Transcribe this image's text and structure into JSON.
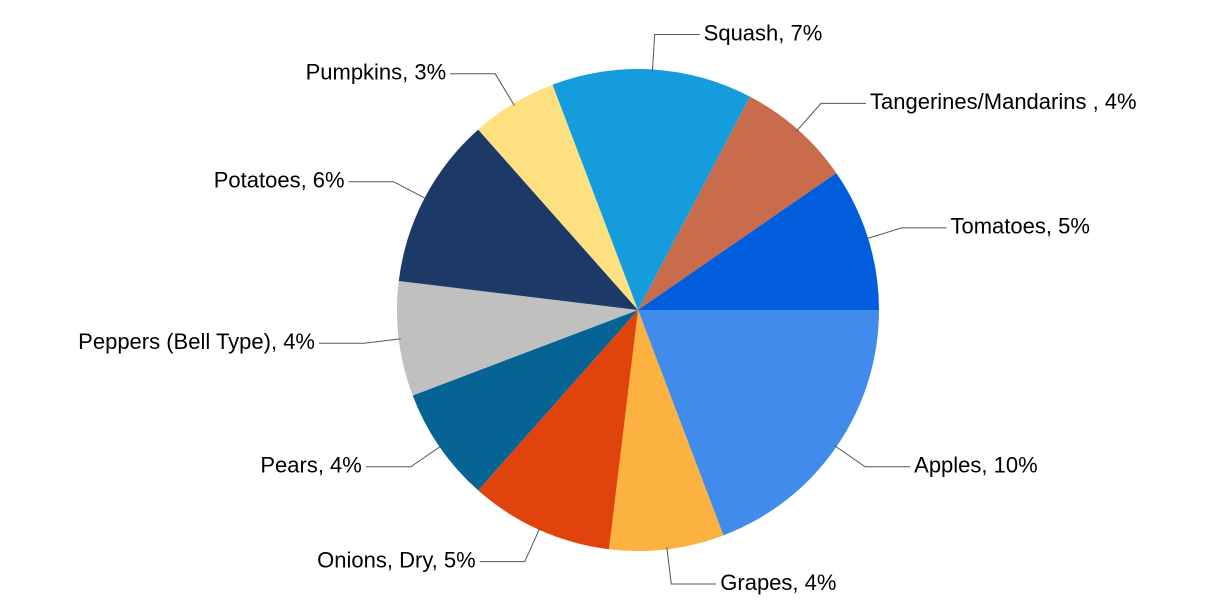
{
  "chart_data": {
    "type": "pie",
    "values": [
      10,
      4,
      5,
      4,
      4,
      6,
      3,
      7,
      4,
      5
    ],
    "value_labels": [
      "Apples, 10%",
      "Grapes, 4%",
      "Onions, Dry, 5%",
      "Pears, 4%",
      "Peppers (Bell Type), 4%",
      "Potatoes, 6%",
      "Pumpkins, 3%",
      "Squash, 7%",
      "Tangerines/Mandarins , 4%",
      "Tomatoes, 5%"
    ],
    "colors": [
      "#418bec",
      "#fbb240",
      "#e0440c",
      "#066494",
      "#c0c0c0",
      "#1d3967",
      "#fde080",
      "#159cdc",
      "#c96c4c",
      "#015ddc"
    ]
  }
}
